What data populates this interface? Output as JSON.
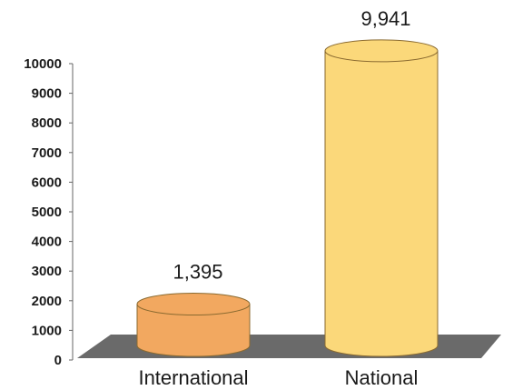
{
  "chart_data": {
    "type": "bar",
    "categories": [
      "International",
      "National"
    ],
    "values": [
      1395,
      9941
    ],
    "data_labels": [
      "1,395",
      "9,941"
    ],
    "ylim": [
      0,
      10000
    ],
    "yticks": [
      "0",
      "1000",
      "2000",
      "3000",
      "4000",
      "5000",
      "6000",
      "7000",
      "8000",
      "9000",
      "10000"
    ],
    "title": "",
    "xlabel": "",
    "ylabel": "",
    "grid": false,
    "legend": "none",
    "style": "3d-cylinder",
    "colors": {
      "International": "#f2a860",
      "National": "#fbd87a",
      "floor": "#6a6a6a",
      "axis": "#666666"
    }
  }
}
